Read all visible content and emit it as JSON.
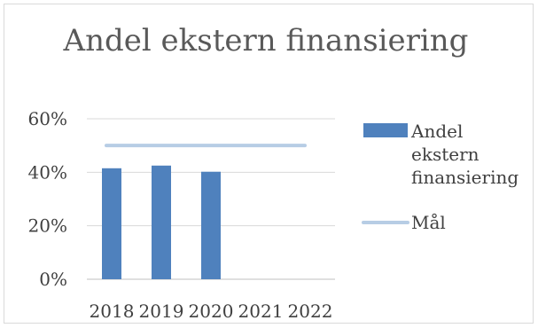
{
  "chart_data": {
    "type": "bar",
    "title": "Andel ekstern finansiering",
    "categories": [
      "2018",
      "2019",
      "2020",
      "2021",
      "2022"
    ],
    "series": [
      {
        "name": "Andel ekstern finansiering",
        "type": "bar",
        "color": "#4f81bd",
        "values": [
          0.415,
          0.425,
          0.402,
          null,
          null
        ]
      },
      {
        "name": "Mål",
        "type": "line",
        "color": "#b7cde5",
        "values": [
          0.5,
          0.5,
          0.5,
          0.5,
          0.5
        ]
      }
    ],
    "yaxis": {
      "ticks": [
        "0%",
        "20%",
        "40%",
        "60%"
      ],
      "tick_values": [
        0,
        0.2,
        0.4,
        0.6
      ],
      "ylim": [
        0,
        0.6
      ]
    },
    "grid": true,
    "legend": {
      "position": "right",
      "entries": [
        "Andel ekstern finansiering",
        "Mål"
      ]
    }
  }
}
